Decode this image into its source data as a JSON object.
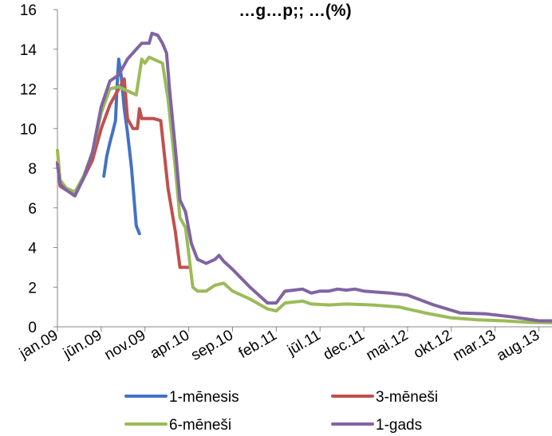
{
  "chart_data": {
    "type": "line",
    "title": "…g…p;; …(%)",
    "xlabel": "",
    "ylabel": "",
    "ylim": [
      0,
      16
    ],
    "yticks": [
      0,
      2,
      4,
      6,
      8,
      10,
      12,
      14,
      16
    ],
    "xlim": [
      "jan.09",
      "sep.13"
    ],
    "xticks": [
      "jan.09",
      "jūn.09",
      "nov.09",
      "apr.10",
      "sep.10",
      "feb.11",
      "jūl.11",
      "dec.11",
      "mai.12",
      "okt.12",
      "mar.13",
      "aug.13"
    ],
    "grid": false,
    "legend_position": "bottom",
    "series": [
      {
        "name": "1-mēnesis",
        "color": "#4472C4",
        "points": [
          [
            "2009-06-10",
            7.6
          ],
          [
            "2009-06-20",
            8.6
          ],
          [
            "2009-07-01",
            9.3
          ],
          [
            "2009-07-10",
            9.8
          ],
          [
            "2009-07-20",
            10.4
          ],
          [
            "2009-07-25",
            12.0
          ],
          [
            "2009-08-01",
            13.5
          ],
          [
            "2009-08-10",
            12.6
          ],
          [
            "2009-08-20",
            11.0
          ],
          [
            "2009-09-01",
            9.8
          ],
          [
            "2009-09-15",
            8.0
          ],
          [
            "2009-10-01",
            5.1
          ],
          [
            "2009-10-12",
            4.7
          ]
        ]
      },
      {
        "name": "3-mēneši",
        "color": "#C0504D",
        "points": [
          [
            "2009-01-01",
            8.3
          ],
          [
            "2009-01-10",
            7.1
          ],
          [
            "2009-02-01",
            6.9
          ],
          [
            "2009-03-01",
            6.8
          ],
          [
            "2009-04-01",
            7.5
          ],
          [
            "2009-05-01",
            8.4
          ],
          [
            "2009-06-01",
            10.0
          ],
          [
            "2009-07-01",
            11.2
          ],
          [
            "2009-08-01",
            12.0
          ],
          [
            "2009-08-20",
            12.5
          ],
          [
            "2009-09-01",
            10.5
          ],
          [
            "2009-09-20",
            10.0
          ],
          [
            "2009-10-05",
            10.0
          ],
          [
            "2009-10-12",
            11.0
          ],
          [
            "2009-10-20",
            10.5
          ],
          [
            "2009-12-01",
            10.5
          ],
          [
            "2009-12-25",
            10.4
          ],
          [
            "2010-01-20",
            7.0
          ],
          [
            "2010-02-15",
            4.8
          ],
          [
            "2010-03-01",
            3.0
          ],
          [
            "2010-04-01",
            3.0
          ]
        ]
      },
      {
        "name": "6-mēneši",
        "color": "#9BBB59",
        "points": [
          [
            "2009-01-01",
            8.9
          ],
          [
            "2009-01-10",
            7.4
          ],
          [
            "2009-02-01",
            7.0
          ],
          [
            "2009-03-01",
            6.8
          ],
          [
            "2009-04-01",
            7.6
          ],
          [
            "2009-05-01",
            8.8
          ],
          [
            "2009-06-01",
            10.8
          ],
          [
            "2009-07-01",
            12.0
          ],
          [
            "2009-08-01",
            12.1
          ],
          [
            "2009-09-01",
            11.9
          ],
          [
            "2009-10-01",
            11.7
          ],
          [
            "2009-10-20",
            13.5
          ],
          [
            "2009-11-01",
            13.3
          ],
          [
            "2009-11-15",
            13.6
          ],
          [
            "2009-12-15",
            13.4
          ],
          [
            "2010-01-01",
            13.3
          ],
          [
            "2010-01-20",
            11.5
          ],
          [
            "2010-02-15",
            8.0
          ],
          [
            "2010-03-01",
            5.5
          ],
          [
            "2010-03-20",
            5.0
          ],
          [
            "2010-04-15",
            2.0
          ],
          [
            "2010-05-01",
            1.8
          ],
          [
            "2010-06-01",
            1.8
          ],
          [
            "2010-07-01",
            2.1
          ],
          [
            "2010-08-01",
            2.2
          ],
          [
            "2010-09-01",
            1.8
          ],
          [
            "2010-11-01",
            1.4
          ],
          [
            "2011-01-01",
            0.9
          ],
          [
            "2011-02-01",
            0.8
          ],
          [
            "2011-03-01",
            1.2
          ],
          [
            "2011-04-01",
            1.25
          ],
          [
            "2011-05-01",
            1.3
          ],
          [
            "2011-06-01",
            1.15
          ],
          [
            "2011-08-01",
            1.1
          ],
          [
            "2011-10-01",
            1.15
          ],
          [
            "2012-01-01",
            1.1
          ],
          [
            "2012-04-01",
            1.0
          ],
          [
            "2012-07-01",
            0.7
          ],
          [
            "2012-10-01",
            0.45
          ],
          [
            "2013-01-01",
            0.35
          ],
          [
            "2013-04-01",
            0.3
          ],
          [
            "2013-07-01",
            0.22
          ],
          [
            "2013-10-01",
            0.2
          ]
        ]
      },
      {
        "name": "1-gads",
        "color": "#8064A2",
        "points": [
          [
            "2009-01-01",
            8.2
          ],
          [
            "2009-01-10",
            7.2
          ],
          [
            "2009-02-01",
            6.9
          ],
          [
            "2009-03-01",
            6.6
          ],
          [
            "2009-04-01",
            7.5
          ],
          [
            "2009-05-01",
            8.8
          ],
          [
            "2009-06-01",
            11.1
          ],
          [
            "2009-07-01",
            12.4
          ],
          [
            "2009-08-01",
            12.7
          ],
          [
            "2009-09-01",
            13.5
          ],
          [
            "2009-10-01",
            14.0
          ],
          [
            "2009-10-20",
            14.3
          ],
          [
            "2009-11-15",
            14.3
          ],
          [
            "2009-11-25",
            14.8
          ],
          [
            "2009-12-15",
            14.7
          ],
          [
            "2010-01-01",
            14.3
          ],
          [
            "2010-01-15",
            13.8
          ],
          [
            "2010-01-25",
            12.0
          ],
          [
            "2010-02-15",
            9.0
          ],
          [
            "2010-03-01",
            6.4
          ],
          [
            "2010-03-20",
            5.8
          ],
          [
            "2010-04-10",
            4.2
          ],
          [
            "2010-05-01",
            3.4
          ],
          [
            "2010-06-01",
            3.2
          ],
          [
            "2010-07-01",
            3.4
          ],
          [
            "2010-07-15",
            3.6
          ],
          [
            "2010-08-01",
            3.3
          ],
          [
            "2010-09-01",
            2.9
          ],
          [
            "2010-11-01",
            2.0
          ],
          [
            "2011-01-01",
            1.2
          ],
          [
            "2011-02-01",
            1.2
          ],
          [
            "2011-03-01",
            1.8
          ],
          [
            "2011-04-01",
            1.85
          ],
          [
            "2011-05-01",
            1.9
          ],
          [
            "2011-06-01",
            1.7
          ],
          [
            "2011-07-01",
            1.8
          ],
          [
            "2011-08-01",
            1.8
          ],
          [
            "2011-09-01",
            1.9
          ],
          [
            "2011-10-01",
            1.85
          ],
          [
            "2011-11-01",
            1.9
          ],
          [
            "2011-12-01",
            1.8
          ],
          [
            "2012-03-01",
            1.7
          ],
          [
            "2012-05-01",
            1.6
          ],
          [
            "2012-08-01",
            1.1
          ],
          [
            "2012-11-01",
            0.7
          ],
          [
            "2013-02-01",
            0.65
          ],
          [
            "2013-05-01",
            0.5
          ],
          [
            "2013-08-01",
            0.3
          ],
          [
            "2013-10-01",
            0.3
          ]
        ]
      }
    ]
  }
}
